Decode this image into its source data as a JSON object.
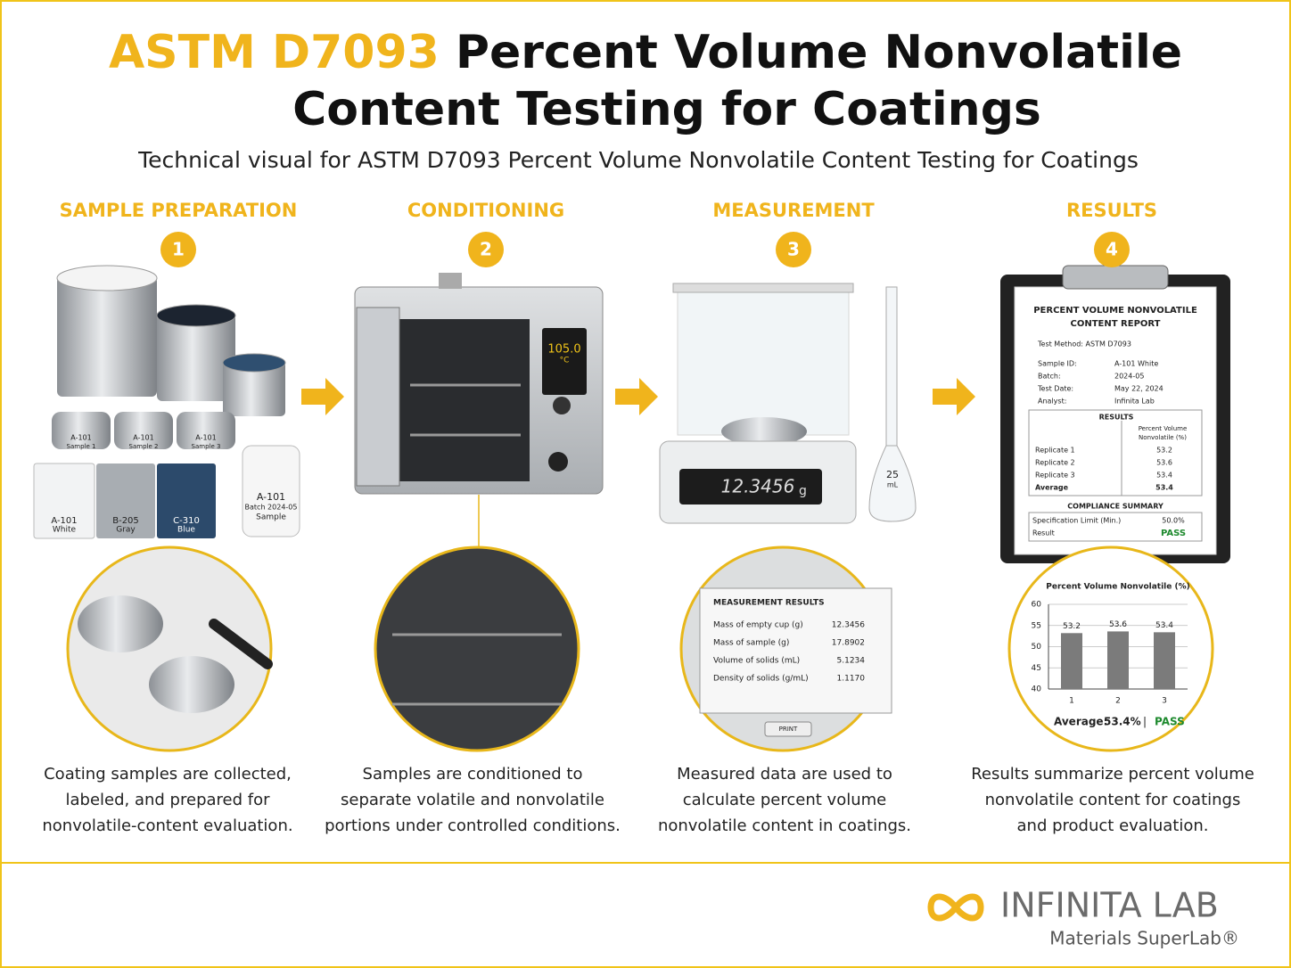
{
  "header": {
    "title_highlight": "ASTM D7093",
    "title_rest": "Percent Volume Nonvolatile",
    "title_line2": "Content Testing for Coatings",
    "subtitle": "Technical visual for ASTM D7093 Percent Volume Nonvolatile Content Testing for Coatings"
  },
  "steps": [
    {
      "label": "SAMPLE PREPARATION",
      "number": "1",
      "caption": [
        "Coating samples are collected,",
        "labeled, and prepared for",
        "nonvolatile-content evaluation."
      ]
    },
    {
      "label": "CONDITIONING",
      "number": "2",
      "caption": [
        "Samples are conditioned to",
        "separate volatile and nonvolatile",
        "portions under controlled conditions."
      ]
    },
    {
      "label": "MEASUREMENT",
      "number": "3",
      "caption": [
        "Measured data are used to",
        "calculate percent volume",
        "nonvolatile content in coatings."
      ]
    },
    {
      "label": "RESULTS",
      "number": "4",
      "caption": [
        "Results summarize percent volume",
        "nonvolatile content for coatings",
        "and product evaluation."
      ]
    }
  ],
  "sample_prep": {
    "cup_labels": [
      [
        "A-101",
        "Sample 1"
      ],
      [
        "A-101",
        "Sample 2"
      ],
      [
        "A-101",
        "Sample 3"
      ]
    ],
    "panels": [
      [
        "A-101",
        "White"
      ],
      [
        "B-205",
        "Gray"
      ],
      [
        "C-310",
        "Blue"
      ]
    ],
    "jar": [
      "A-101",
      "Batch 2024-05",
      "Sample"
    ]
  },
  "oven": {
    "display": "105.0",
    "unit": "°C"
  },
  "balance": {
    "display": "12.3456",
    "unit": "g",
    "cylinder": "25",
    "cylinder_unit": "mL"
  },
  "measurement": {
    "title": "MEASUREMENT RESULTS",
    "rows": [
      [
        "Mass of empty cup (g)",
        "12.3456"
      ],
      [
        "Mass of sample (g)",
        "17.8902"
      ],
      [
        "Volume of solids (mL)",
        "5.1234"
      ],
      [
        "Density of solids (g/mL)",
        "1.1170"
      ]
    ],
    "button": "PRINT"
  },
  "report": {
    "title": [
      "PERCENT VOLUME NONVOLATILE",
      "CONTENT REPORT"
    ],
    "method": "Test Method: ASTM D7093",
    "fields": [
      [
        "Sample ID:",
        "A-101 White"
      ],
      [
        "Batch:",
        "2024-05"
      ],
      [
        "Test Date:",
        "May 22, 2024"
      ],
      [
        "Analyst:",
        "Infinita Lab"
      ]
    ],
    "results_title": "RESULTS",
    "results_header": [
      "Percent Volume",
      "Nonvolatile (%)"
    ],
    "results": [
      [
        "Replicate 1",
        "53.2"
      ],
      [
        "Replicate 2",
        "53.6"
      ],
      [
        "Replicate 3",
        "53.4"
      ],
      [
        "Average",
        "53.4"
      ]
    ],
    "compliance_title": "COMPLIANCE SUMMARY",
    "compliance": [
      [
        "Specification Limit (Min.)",
        "50.0%"
      ],
      [
        "Result",
        "PASS"
      ]
    ]
  },
  "chart": {
    "type": "bar",
    "title": "Percent Volume Nonvolatile (%)",
    "categories": [
      "1",
      "2",
      "3"
    ],
    "values": [
      53.2,
      53.6,
      53.4
    ],
    "color": "#7b7b7b",
    "ylim": [
      40,
      60
    ],
    "yticks": [
      40,
      45,
      50,
      55,
      60
    ],
    "grid": true,
    "average_label": "Average:",
    "average": "53.4%",
    "separator": "|",
    "verdict": "PASS"
  },
  "logo": {
    "name": "INFINITA LAB",
    "tagline": "Materials SuperLab®"
  }
}
